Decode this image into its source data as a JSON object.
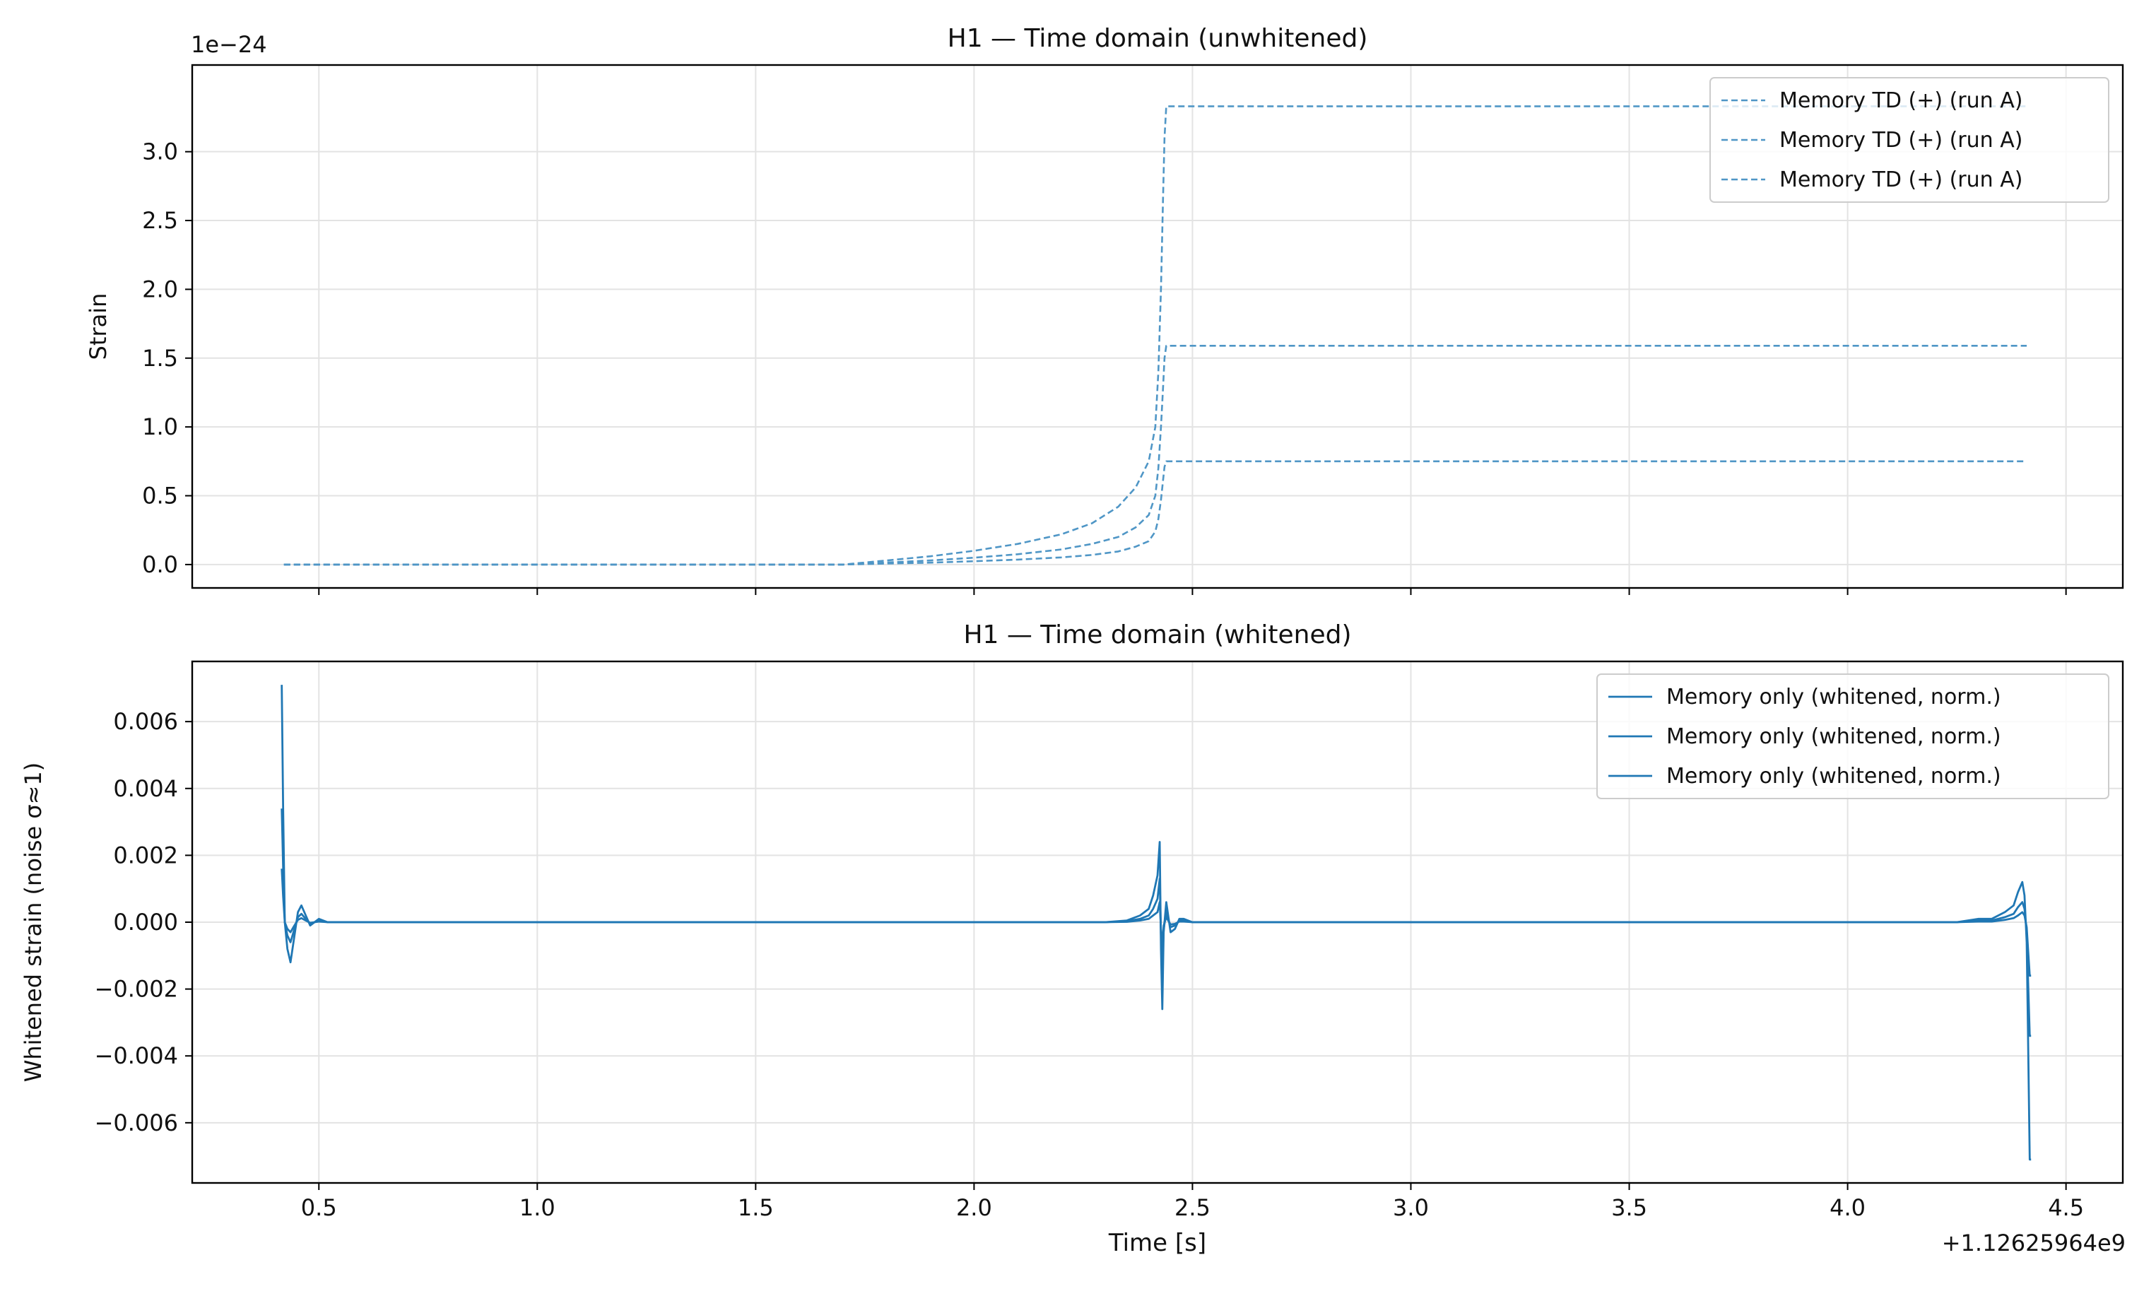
{
  "chart_data": [
    {
      "type": "line",
      "title": "H1 — Time domain (unwhitened)",
      "xlabel": "",
      "ylabel": "Strain",
      "y_offset_text": "1e−24",
      "y_scale": 1e-24,
      "xlim": [
        0.21,
        4.63
      ],
      "ylim": [
        -0.17,
        3.63
      ],
      "x_ticks": [
        0.5,
        1.0,
        1.5,
        2.0,
        2.5,
        3.0,
        3.5,
        4.0,
        4.5
      ],
      "x_tick_labels_visible": false,
      "y_ticks": [
        0.0,
        0.5,
        1.0,
        1.5,
        2.0,
        2.5,
        3.0
      ],
      "y_tick_labels": [
        "0.0",
        "0.5",
        "1.0",
        "1.5",
        "2.0",
        "2.5",
        "3.0"
      ],
      "grid": true,
      "legend_position": "top-right",
      "line_style": "dashed",
      "color": "#4f96c6",
      "series": [
        {
          "name": "Memory TD (+) (run A)",
          "x": [
            0.42,
            1.5,
            1.7,
            1.8,
            1.9,
            2.0,
            2.1,
            2.2,
            2.27,
            2.33,
            2.37,
            2.4,
            2.415,
            2.422,
            2.428,
            2.433,
            2.436,
            2.44,
            2.5,
            3.5,
            4.41
          ],
          "y": [
            0.0,
            0.0,
            0.0,
            0.03,
            0.06,
            0.1,
            0.15,
            0.22,
            0.3,
            0.42,
            0.56,
            0.75,
            1.0,
            1.4,
            2.0,
            2.7,
            3.1,
            3.33,
            3.33,
            3.33,
            3.33
          ]
        },
        {
          "name": "Memory TD (+) (run A)",
          "x": [
            0.42,
            1.5,
            1.7,
            1.8,
            1.9,
            2.0,
            2.1,
            2.2,
            2.27,
            2.33,
            2.37,
            2.4,
            2.415,
            2.422,
            2.428,
            2.433,
            2.436,
            2.44,
            2.5,
            3.5,
            4.41
          ],
          "y": [
            0.0,
            0.0,
            0.0,
            0.015,
            0.03,
            0.05,
            0.075,
            0.11,
            0.15,
            0.2,
            0.27,
            0.36,
            0.5,
            0.7,
            1.0,
            1.3,
            1.5,
            1.59,
            1.59,
            1.59,
            1.59
          ]
        },
        {
          "name": "Memory TD (+) (run A)",
          "x": [
            0.42,
            1.5,
            1.7,
            1.8,
            1.9,
            2.0,
            2.1,
            2.2,
            2.27,
            2.33,
            2.37,
            2.4,
            2.415,
            2.422,
            2.428,
            2.433,
            2.436,
            2.44,
            2.5,
            3.5,
            4.41
          ],
          "y": [
            0.0,
            0.0,
            0.0,
            0.007,
            0.014,
            0.024,
            0.036,
            0.052,
            0.07,
            0.095,
            0.13,
            0.17,
            0.24,
            0.33,
            0.47,
            0.62,
            0.71,
            0.75,
            0.75,
            0.75,
            0.75
          ]
        }
      ]
    },
    {
      "type": "line",
      "title": "H1 — Time domain (whitened)",
      "xlabel": "Time [s]",
      "ylabel": "Whitened strain (noise σ≈1)",
      "x_offset_text": "+1.12625964e9",
      "xlim": [
        0.21,
        4.63
      ],
      "ylim": [
        -0.0078,
        0.0078
      ],
      "x_ticks": [
        0.5,
        1.0,
        1.5,
        2.0,
        2.5,
        3.0,
        3.5,
        4.0,
        4.5
      ],
      "x_tick_labels": [
        "0.5",
        "1.0",
        "1.5",
        "2.0",
        "2.5",
        "3.0",
        "3.5",
        "4.0",
        "4.5"
      ],
      "y_ticks": [
        -0.006,
        -0.004,
        -0.002,
        0.0,
        0.002,
        0.004,
        0.006
      ],
      "y_tick_labels": [
        "−0.006",
        "−0.004",
        "−0.002",
        "0.000",
        "0.002",
        "0.004",
        "0.006"
      ],
      "grid": true,
      "legend_position": "top-right",
      "line_style": "solid",
      "color": "#1f77b4",
      "series": [
        {
          "name": "Memory only (whitened, norm.)",
          "x": [
            0.415,
            0.418,
            0.422,
            0.428,
            0.435,
            0.443,
            0.452,
            0.46,
            0.47,
            0.48,
            0.49,
            0.5,
            0.52,
            0.55,
            0.6,
            2.3,
            2.35,
            2.38,
            2.4,
            2.41,
            2.42,
            2.425,
            2.428,
            2.431,
            2.434,
            2.44,
            2.45,
            2.46,
            2.47,
            2.48,
            2.5,
            2.55,
            4.25,
            4.3,
            4.33,
            4.36,
            4.38,
            4.39,
            4.4,
            4.405,
            4.41,
            4.413,
            4.417,
            4.42
          ],
          "y": [
            0.0071,
            0.0035,
            0.0,
            -0.0008,
            -0.0012,
            -0.0005,
            0.0003,
            0.0005,
            0.0002,
            -0.0001,
            0.0,
            0.0001,
            0.0,
            0.0,
            0.0,
            0.0,
            5e-05,
            0.0002,
            0.0004,
            0.0008,
            0.0014,
            0.0024,
            -0.0008,
            -0.0026,
            -0.0003,
            0.0006,
            -0.0003,
            -0.0002,
            0.0001,
            0.0001,
            0.0,
            0.0,
            0.0,
            0.0001,
            0.0001,
            0.0003,
            0.0005,
            0.0009,
            0.0012,
            0.0008,
            -0.0006,
            -0.0034,
            -0.0071,
            -0.0071
          ]
        },
        {
          "name": "Memory only (whitened, norm.)",
          "x": [
            0.415,
            0.418,
            0.422,
            0.428,
            0.435,
            0.443,
            0.452,
            0.46,
            0.47,
            0.48,
            0.49,
            0.5,
            0.52,
            0.55,
            0.6,
            2.3,
            2.35,
            2.38,
            2.4,
            2.41,
            2.42,
            2.425,
            2.428,
            2.431,
            2.434,
            2.44,
            2.45,
            2.46,
            2.47,
            2.48,
            2.5,
            2.55,
            4.25,
            4.3,
            4.33,
            4.36,
            4.38,
            4.39,
            4.4,
            4.405,
            4.41,
            4.413,
            4.417,
            4.42
          ],
          "y": [
            0.0034,
            0.0017,
            0.0,
            -0.0004,
            -0.0006,
            -0.00025,
            0.00015,
            0.00025,
            0.0001,
            -5e-05,
            0.0,
            5e-05,
            0.0,
            0.0,
            0.0,
            0.0,
            3e-05,
            0.0001,
            0.0002,
            0.0004,
            0.0007,
            0.0013,
            -0.0004,
            -0.0015,
            -0.0002,
            0.0003,
            -0.00015,
            -0.0001,
            5e-05,
            5e-05,
            0.0,
            0.0,
            0.0,
            5e-05,
            5e-05,
            0.00015,
            0.00025,
            0.00045,
            0.0006,
            0.0004,
            -0.0003,
            -0.0017,
            -0.0034,
            -0.0034
          ]
        },
        {
          "name": "Memory only (whitened, norm.)",
          "x": [
            0.415,
            0.418,
            0.422,
            0.428,
            0.435,
            0.443,
            0.452,
            0.46,
            0.47,
            0.48,
            0.49,
            0.5,
            0.52,
            0.55,
            0.6,
            2.3,
            2.35,
            2.38,
            2.4,
            2.41,
            2.42,
            2.425,
            2.428,
            2.431,
            2.434,
            2.44,
            2.45,
            2.46,
            2.47,
            2.48,
            2.5,
            2.55,
            4.25,
            4.3,
            4.33,
            4.36,
            4.38,
            4.39,
            4.4,
            4.405,
            4.41,
            4.413,
            4.417,
            4.42
          ],
          "y": [
            0.0016,
            0.0008,
            0.0,
            -0.0002,
            -0.0003,
            -0.00012,
            7e-05,
            0.00012,
            5e-05,
            -2e-05,
            0.0,
            2e-05,
            0.0,
            0.0,
            0.0,
            0.0,
            1e-05,
            5e-05,
            0.0001,
            0.0002,
            0.0003,
            0.0006,
            -0.0002,
            -0.0007,
            -0.0001,
            0.00015,
            -7e-05,
            -5e-05,
            2e-05,
            2e-05,
            0.0,
            0.0,
            0.0,
            2e-05,
            2e-05,
            7e-05,
            0.00012,
            0.0002,
            0.0003,
            0.0002,
            -0.00015,
            -0.0008,
            -0.0016,
            -0.0016
          ]
        }
      ]
    }
  ]
}
